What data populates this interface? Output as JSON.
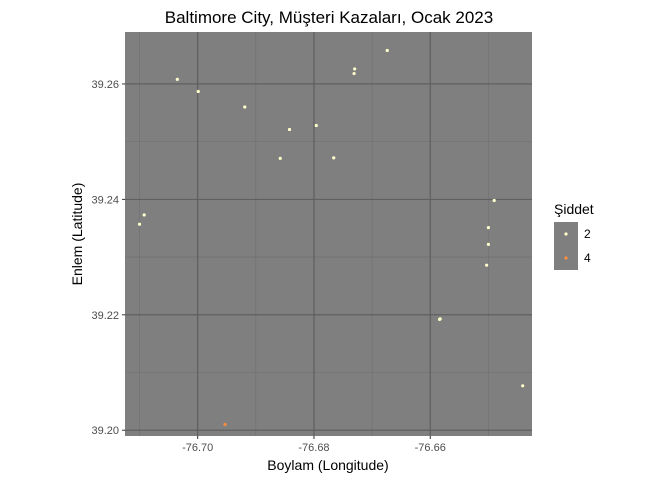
{
  "chart_data": {
    "type": "scatter",
    "title": "Baltimore City, Müşteri Kazaları, Ocak 2023",
    "xlabel": "Boylam (Longitude)",
    "ylabel": "Enlem (Latitude)",
    "xlim": [
      -76.7125,
      -76.6425
    ],
    "ylim": [
      39.199,
      39.269
    ],
    "x_ticks": [
      -76.7,
      -76.68,
      -76.66
    ],
    "x_tick_labels": [
      "-76.70",
      "-76.68",
      "-76.66"
    ],
    "y_ticks": [
      39.2,
      39.22,
      39.24,
      39.26
    ],
    "y_tick_labels": [
      "39.20",
      "39.22",
      "39.24",
      "39.26"
    ],
    "x_minor_ticks": [
      -76.71,
      -76.69,
      -76.67,
      -76.65
    ],
    "y_minor_ticks": [
      39.21,
      39.23,
      39.25
    ],
    "grid": true,
    "legend_position": "right",
    "legend": {
      "title": "Şiddet",
      "entries": [
        {
          "label": "2",
          "color": "#ffffcc"
        },
        {
          "label": "4",
          "color": "#fd8d3c"
        }
      ]
    },
    "colors": {
      "panel_background": "#7f7f7f",
      "grid_major": "#5c5c5c",
      "grid_minor": "#6e6e6e"
    },
    "points": [
      {
        "x": -76.7035,
        "y": 39.2608,
        "severity": "2"
      },
      {
        "x": -76.6999,
        "y": 39.2587,
        "severity": "2"
      },
      {
        "x": -76.6919,
        "y": 39.256,
        "severity": "2"
      },
      {
        "x": -76.673,
        "y": 39.2626,
        "severity": "2"
      },
      {
        "x": -76.6731,
        "y": 39.2618,
        "severity": "2"
      },
      {
        "x": -76.6674,
        "y": 39.2658,
        "severity": "2"
      },
      {
        "x": -76.6842,
        "y": 39.2521,
        "severity": "2"
      },
      {
        "x": -76.6796,
        "y": 39.2528,
        "severity": "2"
      },
      {
        "x": -76.6858,
        "y": 39.2471,
        "severity": "2"
      },
      {
        "x": -76.6766,
        "y": 39.2472,
        "severity": "2"
      },
      {
        "x": -76.7092,
        "y": 39.2373,
        "severity": "2"
      },
      {
        "x": -76.71,
        "y": 39.2357,
        "severity": "2"
      },
      {
        "x": -76.649,
        "y": 39.2398,
        "severity": "2"
      },
      {
        "x": -76.65,
        "y": 39.2351,
        "severity": "2"
      },
      {
        "x": -76.65,
        "y": 39.2322,
        "severity": "2"
      },
      {
        "x": -76.6503,
        "y": 39.2286,
        "severity": "2"
      },
      {
        "x": -76.6584,
        "y": 39.2192,
        "severity": "2"
      },
      {
        "x": -76.6583,
        "y": 39.2193,
        "severity": "2"
      },
      {
        "x": -76.6441,
        "y": 39.2077,
        "severity": "2"
      },
      {
        "x": -76.6953,
        "y": 39.201,
        "severity": "4"
      }
    ]
  }
}
